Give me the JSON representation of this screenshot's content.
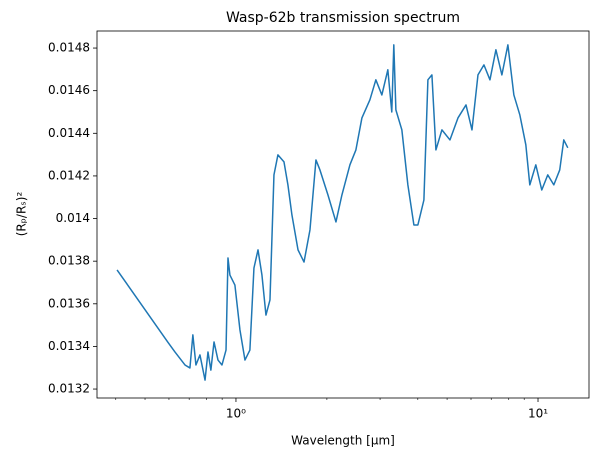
{
  "chart_data": {
    "type": "line",
    "title": "Wasp-62b transmission spectrum",
    "xlabel": "Wavelength [μm]",
    "ylabel": "(Rₚ/Rₛ)²",
    "xscale": "log",
    "xlim": [
      0.3467,
      14.75
    ],
    "ylim": [
      0.013158,
      0.01488
    ],
    "xticks": [
      {
        "value": 1,
        "label": "10⁰"
      },
      {
        "value": 10,
        "label": "10¹"
      }
    ],
    "xminorticks": [
      0.4,
      0.5,
      0.6,
      0.7,
      0.8,
      0.9,
      2,
      3,
      4,
      5,
      6,
      7,
      8,
      9
    ],
    "yticks": [
      0.0132,
      0.0134,
      0.0136,
      0.0138,
      0.014,
      0.0142,
      0.0144,
      0.0146,
      0.0148
    ],
    "grid": false,
    "series": [
      {
        "color": "#1f77b4",
        "x": [
          0.404,
          0.595,
          0.628,
          0.678,
          0.704,
          0.72,
          0.737,
          0.76,
          0.79,
          0.808,
          0.826,
          0.846,
          0.872,
          0.899,
          0.927,
          0.941,
          0.955,
          0.992,
          1.031,
          1.071,
          1.112,
          1.147,
          1.183,
          1.219,
          1.257,
          1.296,
          1.336,
          1.377,
          1.442,
          1.486,
          1.532,
          1.605,
          1.68,
          1.758,
          1.84,
          1.897,
          2.016,
          2.143,
          2.243,
          2.384,
          2.495,
          2.612,
          2.776,
          2.905,
          3.041,
          3.183,
          3.28,
          3.331,
          3.384,
          3.542,
          3.708,
          3.882,
          4.002,
          4.19,
          4.32,
          4.454,
          4.592,
          4.807,
          5.111,
          5.432,
          5.776,
          6.045,
          6.327,
          6.622,
          6.932,
          7.255,
          7.593,
          7.948,
          8.318,
          8.707,
          9.113,
          9.394,
          9.833,
          10.29,
          10.77,
          11.28,
          11.8,
          12.17,
          12.55
        ],
        "values": [
          0.013759,
          0.01342,
          0.013374,
          0.013313,
          0.013299,
          0.013454,
          0.013313,
          0.01336,
          0.013242,
          0.013374,
          0.013289,
          0.013421,
          0.013336,
          0.013313,
          0.013383,
          0.013815,
          0.013735,
          0.013688,
          0.013477,
          0.013336,
          0.013383,
          0.013768,
          0.013853,
          0.013735,
          0.013547,
          0.013618,
          0.014205,
          0.014299,
          0.014266,
          0.014158,
          0.014017,
          0.013853,
          0.013796,
          0.013947,
          0.014275,
          0.014228,
          0.014111,
          0.013984,
          0.014111,
          0.014252,
          0.014322,
          0.014472,
          0.014557,
          0.014651,
          0.01458,
          0.014698,
          0.0145,
          0.014815,
          0.01451,
          0.014416,
          0.014158,
          0.01397,
          0.01397,
          0.014087,
          0.014651,
          0.014674,
          0.014322,
          0.014416,
          0.014369,
          0.014472,
          0.014533,
          0.014416,
          0.014674,
          0.014721,
          0.014651,
          0.014792,
          0.014674,
          0.014815,
          0.01458,
          0.014486,
          0.014346,
          0.014158,
          0.014252,
          0.014134,
          0.014205,
          0.014158,
          0.014228,
          0.014369,
          0.014332
        ]
      }
    ]
  }
}
